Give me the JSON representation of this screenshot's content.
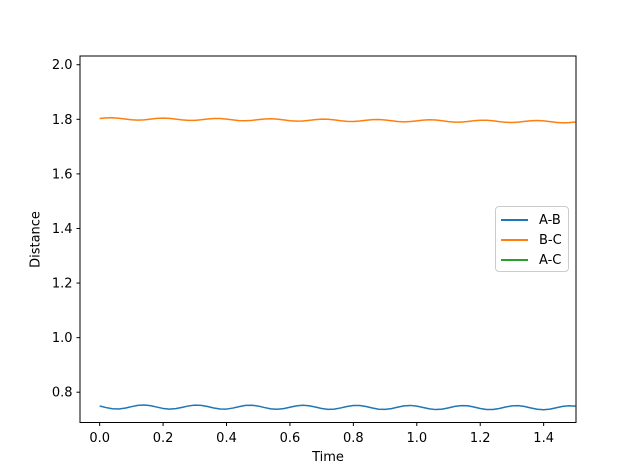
{
  "figure": {
    "background": "#ffffff"
  },
  "chart_data": {
    "type": "line",
    "title": "",
    "xlabel": "Time",
    "ylabel": "Distance",
    "xlim": [
      -0.062,
      1.502
    ],
    "ylim": [
      0.689,
      2.032
    ],
    "xtick_values": [
      0.0,
      0.2,
      0.4,
      0.6,
      0.8,
      1.0,
      1.2,
      1.4
    ],
    "xtick_labels": [
      "0.0",
      "0.2",
      "0.4",
      "0.6",
      "0.8",
      "1.0",
      "1.2",
      "1.4"
    ],
    "ytick_values": [
      0.8,
      1.0,
      1.2,
      1.4,
      1.6,
      1.8,
      2.0
    ],
    "ytick_labels": [
      "0.8",
      "1.0",
      "1.2",
      "1.4",
      "1.6",
      "1.8",
      "2.0"
    ],
    "grid": false,
    "spine_color": "#000000",
    "legend": {
      "position": "center right",
      "items": [
        {
          "label": "A-B",
          "color": "#1f77b4"
        },
        {
          "label": "B-C",
          "color": "#ff7f0e"
        },
        {
          "label": "A-C",
          "color": "#2ca02c"
        }
      ]
    },
    "x": [
      0,
      0.02,
      0.04,
      0.06,
      0.08,
      0.1,
      0.12,
      0.14,
      0.16,
      0.18,
      0.2,
      0.22,
      0.24,
      0.26,
      0.28,
      0.3,
      0.32,
      0.34,
      0.36,
      0.38,
      0.4,
      0.42,
      0.44,
      0.46,
      0.48,
      0.5,
      0.52,
      0.54,
      0.56,
      0.58,
      0.6,
      0.62,
      0.64,
      0.66,
      0.68,
      0.7,
      0.72,
      0.74,
      0.76,
      0.78,
      0.8,
      0.82,
      0.84,
      0.86,
      0.88,
      0.9,
      0.92,
      0.94,
      0.96,
      0.98,
      1.0,
      1.02,
      1.04,
      1.06,
      1.08,
      1.1,
      1.12,
      1.14,
      1.16,
      1.18,
      1.2,
      1.22,
      1.24,
      1.26,
      1.28,
      1.3,
      1.32,
      1.34,
      1.36,
      1.38,
      1.4,
      1.42,
      1.44,
      1.46,
      1.48,
      1.5
    ],
    "series": [
      {
        "name": "A-B",
        "color": "#1f77b4",
        "values": [
          0.7493,
          0.7437,
          0.7394,
          0.7386,
          0.7416,
          0.7469,
          0.7516,
          0.7532,
          0.7508,
          0.7456,
          0.7405,
          0.7381,
          0.7397,
          0.7444,
          0.7497,
          0.7527,
          0.7519,
          0.7475,
          0.742,
          0.7383,
          0.7382,
          0.7419,
          0.7473,
          0.7516,
          0.7524,
          0.7492,
          0.7438,
          0.7391,
          0.7374,
          0.7397,
          0.7448,
          0.7499,
          0.7522,
          0.7505,
          0.7458,
          0.7404,
          0.7372,
          0.738,
          0.7423,
          0.7477,
          0.7514,
          0.7513,
          0.7476,
          0.7421,
          0.7377,
          0.7369,
          0.7399,
          0.7452,
          0.7499,
          0.7515,
          0.7491,
          0.744,
          0.7388,
          0.7364,
          0.738,
          0.7427,
          0.748,
          0.751,
          0.7502,
          0.7459,
          0.7403,
          0.7366,
          0.7365,
          0.7402,
          0.7457,
          0.7499,
          0.7507,
          0.7475,
          0.7422,
          0.7374,
          0.7357,
          0.7381,
          0.7431,
          0.7482,
          0.7505,
          0.7489
        ]
      },
      {
        "name": "B-C",
        "color": "#ff7f0e",
        "values": [
          1.803,
          1.8052,
          1.8056,
          1.8039,
          1.801,
          1.7982,
          1.7971,
          1.7981,
          1.8007,
          1.8033,
          1.8045,
          1.8036,
          1.8009,
          1.7979,
          1.796,
          1.7962,
          1.7983,
          1.801,
          1.803,
          1.8029,
          1.8009,
          1.7978,
          1.7953,
          1.7946,
          1.796,
          1.7987,
          1.8011,
          1.8019,
          1.8006,
          1.7978,
          1.7949,
          1.7934,
          1.794,
          1.7963,
          1.799,
          1.8006,
          1.8001,
          1.7978,
          1.7947,
          1.7925,
          1.7922,
          1.794,
          1.7967,
          1.7989,
          1.7993,
          1.7976,
          1.7947,
          1.7919,
          1.7908,
          1.7918,
          1.7944,
          1.797,
          1.7982,
          1.7973,
          1.7946,
          1.7916,
          1.7897,
          1.7899,
          1.792,
          1.7947,
          1.7967,
          1.7966,
          1.7946,
          1.7915,
          1.789,
          1.7883,
          1.7897,
          1.7924,
          1.7948,
          1.7956,
          1.7943,
          1.7915,
          1.7886,
          1.7871,
          1.7877,
          1.79
        ]
      },
      {
        "name": "A-C",
        "color": "#2ca02c",
        "values": [],
        "note": "legend entry only; line not visible within the plotted axis range"
      }
    ]
  }
}
